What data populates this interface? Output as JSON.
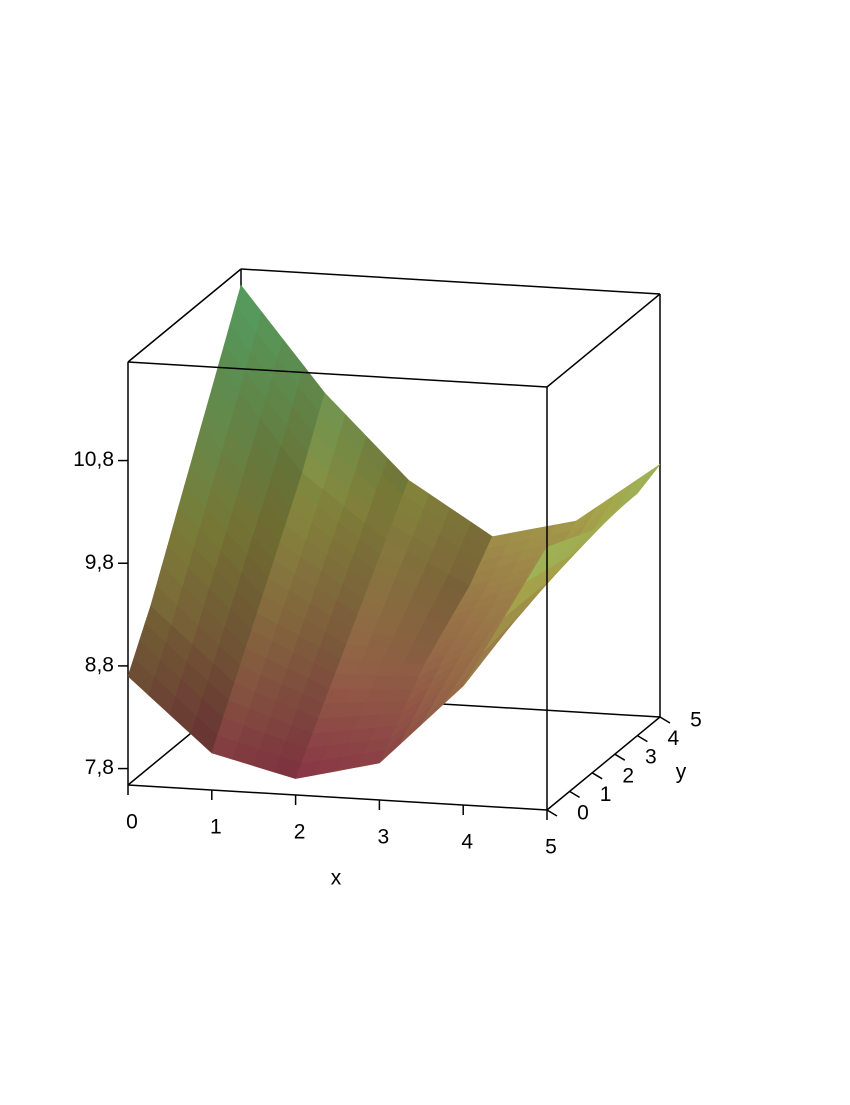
{
  "chart_data": {
    "type": "surface3d",
    "xlabel": "x",
    "ylabel": "y",
    "x": [
      0,
      1,
      2,
      3,
      4,
      5
    ],
    "y": [
      0,
      1,
      2,
      3,
      4,
      5
    ],
    "z": [
      [
        8.7,
        8.0,
        7.8,
        8.0,
        8.8,
        10.2
      ],
      [
        9.2,
        8.5,
        8.2,
        8.3,
        8.9,
        10.1
      ],
      [
        9.8,
        9.0,
        8.6,
        8.6,
        9.0,
        10.0
      ],
      [
        10.4,
        9.5,
        9.0,
        8.8,
        9.1,
        10.0
      ],
      [
        11.0,
        10.0,
        9.4,
        9.0,
        9.3,
        10.0
      ],
      [
        11.6,
        10.6,
        9.8,
        9.3,
        9.5,
        10.1
      ]
    ],
    "xlim": [
      0,
      5
    ],
    "ylim": [
      0,
      5
    ],
    "zlim": [
      7.64,
      11.76
    ],
    "xticks": [
      0,
      1,
      2,
      3,
      4,
      5
    ],
    "yticks": [
      0,
      1,
      2,
      3,
      4,
      5
    ],
    "zticks": [
      {
        "value": 7.8,
        "label": "7,8"
      },
      {
        "value": 8.8,
        "label": "8,8"
      },
      {
        "value": 9.8,
        "label": "9,8"
      },
      {
        "value": 10.8,
        "label": "10,8"
      }
    ],
    "colorscale": [
      "#7d2840",
      "#9a9a45",
      "#72e890"
    ]
  }
}
